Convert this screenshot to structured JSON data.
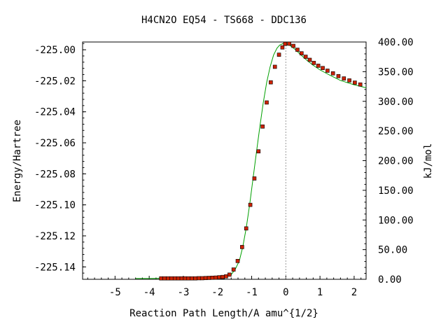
{
  "chart_data": {
    "type": "line",
    "title": "H4CN2O   EQ54 - TS668 - DDC136",
    "xlabel": "Reaction Path Length/A amu^{1/2}",
    "ylabel": "Energy/Hartree",
    "y2label": "kJ/mol",
    "xlim": [
      -5.95,
      2.35
    ],
    "ylim": [
      -225.148,
      -224.995
    ],
    "y2lim": [
      0.0,
      400.0
    ],
    "xticks": [
      -5,
      -4,
      -3,
      -2,
      -1,
      0,
      1,
      2
    ],
    "yticks": [
      -225.0,
      -225.02,
      -225.04,
      -225.06,
      -225.08,
      -225.1,
      -225.12,
      -225.14
    ],
    "ytick_labels": [
      "-225.00",
      "-225.02",
      "-225.04",
      "-225.06",
      "-225.08",
      "-225.10",
      "-225.12",
      "-225.14"
    ],
    "y2ticks": [
      0,
      50,
      100,
      150,
      200,
      250,
      300,
      350,
      400
    ],
    "y2tick_labels": [
      "0.00",
      "50.00",
      "100.00",
      "150.00",
      "200.00",
      "250.00",
      "300.00",
      "350.00",
      "400.00"
    ],
    "ts_marker_x": 0.0,
    "line_color": "#00a000",
    "marker_color": "#cc2200",
    "marker_edge_color": "#000000",
    "ts_line_color": "#999999",
    "grid": false,
    "legend": "none",
    "curve": {
      "x": [
        -4.4,
        -4.0,
        -3.6,
        -3.2,
        -2.8,
        -2.4,
        -2.1,
        -1.9,
        -1.75,
        -1.6,
        -1.48,
        -1.36,
        -1.26,
        -1.16,
        -1.06,
        -0.96,
        -0.86,
        -0.76,
        -0.66,
        -0.56,
        -0.46,
        -0.36,
        -0.26,
        -0.18,
        -0.1,
        -0.04,
        0.0,
        0.04,
        0.1,
        0.2,
        0.3,
        0.4,
        0.6,
        0.8,
        1.0,
        1.3,
        1.6,
        2.0,
        2.35
      ],
      "y": [
        -225.1475,
        -225.1475,
        -225.1474,
        -225.1474,
        -225.1474,
        -225.1473,
        -225.147,
        -225.1467,
        -225.1462,
        -225.145,
        -225.1415,
        -225.136,
        -225.127,
        -225.115,
        -225.1,
        -225.083,
        -225.066,
        -225.0495,
        -225.034,
        -225.021,
        -225.011,
        -225.0035,
        -224.999,
        -224.997,
        -224.9962,
        -224.996,
        -224.9961,
        -224.9964,
        -224.997,
        -224.9985,
        -225.0003,
        -225.0025,
        -225.0065,
        -225.01,
        -225.013,
        -225.0165,
        -225.0198,
        -225.0226,
        -225.0245
      ]
    },
    "points": {
      "x": [
        -3.65,
        -3.55,
        -3.45,
        -3.35,
        -3.25,
        -3.15,
        -3.05,
        -2.95,
        -2.85,
        -2.75,
        -2.65,
        -2.55,
        -2.45,
        -2.35,
        -2.25,
        -2.15,
        -2.05,
        -1.95,
        -1.85,
        -1.75,
        -1.65,
        -1.53,
        -1.41,
        -1.28,
        -1.16,
        -1.04,
        -0.92,
        -0.8,
        -0.68,
        -0.56,
        -0.44,
        -0.32,
        -0.2,
        -0.1,
        -0.02,
        0.1,
        0.22,
        0.34,
        0.46,
        0.58,
        0.7,
        0.82,
        0.95,
        1.08,
        1.22,
        1.38,
        1.54,
        1.7,
        1.86,
        2.02,
        2.18
      ],
      "y": [
        -225.1474,
        -225.1474,
        -225.1474,
        -225.1474,
        -225.1474,
        -225.1474,
        -225.1474,
        -225.1474,
        -225.1474,
        -225.1474,
        -225.1474,
        -225.1473,
        -225.1473,
        -225.1472,
        -225.1471,
        -225.147,
        -225.1469,
        -225.1467,
        -225.1465,
        -225.1461,
        -225.145,
        -225.1417,
        -225.1362,
        -225.1272,
        -225.1152,
        -225.1,
        -225.083,
        -225.0655,
        -225.0495,
        -225.034,
        -225.021,
        -225.011,
        -225.0032,
        -224.9985,
        -224.9962,
        -224.9961,
        -224.9975,
        -225.0,
        -225.0023,
        -225.0045,
        -225.0065,
        -225.0085,
        -225.0103,
        -225.0118,
        -225.0135,
        -225.0152,
        -225.017,
        -225.0185,
        -225.0198,
        -225.0212,
        -225.0224
      ]
    }
  }
}
